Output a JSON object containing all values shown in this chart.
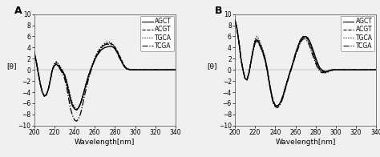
{
  "panel_A_label": "A",
  "panel_B_label": "B",
  "xlabel": "Wavelength[nm]",
  "ylabel": "[θ]",
  "ylim": [
    -10,
    10
  ],
  "xlim": [
    200,
    340
  ],
  "xticks": [
    200,
    220,
    240,
    260,
    280,
    300,
    320,
    340
  ],
  "yticks": [
    -10,
    -8,
    -6,
    -4,
    -2,
    0,
    2,
    4,
    6,
    8,
    10
  ],
  "legend_labels": [
    "AGCT",
    "ACGT",
    "TGCA",
    "TCGA"
  ],
  "line_styles": [
    "-",
    "--",
    ":",
    "-."
  ],
  "line_color": "#000000",
  "background_color": "#f0f0f0",
  "fontsize_label": 6.5,
  "fontsize_tick": 5.5,
  "fontsize_legend": 5.5,
  "fontsize_panel": 9,
  "wavelengths": [
    200,
    202,
    204,
    206,
    208,
    210,
    212,
    214,
    216,
    218,
    220,
    222,
    224,
    226,
    228,
    230,
    232,
    234,
    236,
    238,
    240,
    242,
    244,
    246,
    248,
    250,
    252,
    254,
    256,
    258,
    260,
    262,
    264,
    266,
    268,
    270,
    272,
    274,
    276,
    278,
    280,
    282,
    284,
    286,
    288,
    290,
    292,
    294,
    296,
    298,
    300,
    305,
    310,
    315,
    320,
    325,
    330,
    335,
    340
  ],
  "panel_A": {
    "AGCT": [
      3.2,
      1.5,
      -0.5,
      -2.5,
      -4.0,
      -4.7,
      -4.5,
      -3.5,
      -1.8,
      0.0,
      0.8,
      1.0,
      0.7,
      0.2,
      -0.3,
      -1.0,
      -2.2,
      -3.8,
      -5.5,
      -6.5,
      -7.0,
      -7.2,
      -6.8,
      -6.0,
      -4.8,
      -3.5,
      -2.2,
      -1.0,
      0.0,
      1.0,
      1.8,
      2.5,
      3.0,
      3.5,
      3.8,
      4.0,
      4.1,
      4.2,
      4.2,
      4.1,
      3.8,
      3.2,
      2.5,
      1.8,
      1.0,
      0.5,
      0.2,
      0.1,
      0.0,
      0.0,
      0.0,
      0.0,
      0.0,
      0.0,
      0.0,
      0.0,
      0.0,
      0.0,
      0.0
    ],
    "ACGT": [
      3.2,
      1.5,
      -0.5,
      -2.5,
      -4.0,
      -4.7,
      -4.5,
      -3.5,
      -1.8,
      0.1,
      1.0,
      1.3,
      0.9,
      0.4,
      -0.2,
      -0.8,
      -2.0,
      -3.5,
      -5.2,
      -6.3,
      -7.0,
      -7.2,
      -6.8,
      -6.0,
      -4.8,
      -3.5,
      -2.2,
      -1.0,
      0.0,
      1.0,
      2.0,
      2.8,
      3.4,
      3.9,
      4.3,
      4.6,
      4.7,
      4.8,
      4.7,
      4.5,
      4.1,
      3.5,
      2.8,
      2.0,
      1.2,
      0.6,
      0.2,
      0.1,
      0.0,
      0.0,
      0.0,
      0.0,
      0.0,
      0.0,
      0.0,
      0.0,
      0.0,
      0.0,
      0.0
    ],
    "TGCA": [
      3.2,
      1.5,
      -0.5,
      -2.5,
      -4.0,
      -4.7,
      -4.5,
      -3.5,
      -1.8,
      0.1,
      1.1,
      1.5,
      1.1,
      0.5,
      -0.1,
      -0.7,
      -1.8,
      -3.2,
      -4.8,
      -6.0,
      -6.7,
      -7.0,
      -6.7,
      -5.8,
      -4.6,
      -3.3,
      -2.0,
      -0.8,
      0.2,
      1.2,
      2.2,
      3.0,
      3.6,
      4.1,
      4.5,
      4.8,
      5.0,
      5.0,
      4.9,
      4.6,
      4.1,
      3.4,
      2.6,
      1.8,
      1.0,
      0.5,
      0.2,
      0.1,
      0.0,
      0.0,
      0.0,
      0.0,
      0.0,
      0.0,
      0.0,
      0.0,
      0.0,
      0.0,
      0.0
    ],
    "TCGA": [
      3.2,
      1.5,
      -0.5,
      -2.5,
      -4.0,
      -4.7,
      -4.5,
      -3.5,
      -1.8,
      0.0,
      0.8,
      1.0,
      0.6,
      0.0,
      -0.6,
      -1.5,
      -3.0,
      -5.0,
      -7.0,
      -8.2,
      -9.0,
      -9.2,
      -8.8,
      -7.8,
      -6.2,
      -4.5,
      -3.0,
      -1.5,
      -0.3,
      0.8,
      1.8,
      2.6,
      3.2,
      3.8,
      4.2,
      4.5,
      4.6,
      4.6,
      4.5,
      4.2,
      3.8,
      3.1,
      2.3,
      1.6,
      0.9,
      0.4,
      0.1,
      0.0,
      0.0,
      0.0,
      0.0,
      0.0,
      0.0,
      0.0,
      0.0,
      0.0,
      0.0,
      0.0,
      0.0
    ]
  },
  "panel_B": {
    "AGCT": [
      9.0,
      7.5,
      5.0,
      2.0,
      0.0,
      -1.5,
      -1.8,
      -0.5,
      1.5,
      3.5,
      5.0,
      5.3,
      4.8,
      4.0,
      3.0,
      1.8,
      0.0,
      -2.2,
      -4.2,
      -5.8,
      -6.4,
      -6.5,
      -6.2,
      -5.5,
      -4.5,
      -3.2,
      -2.0,
      -0.8,
      0.3,
      1.5,
      2.8,
      3.8,
      4.8,
      5.5,
      5.9,
      6.0,
      5.8,
      5.2,
      4.3,
      3.3,
      2.2,
      1.2,
      0.4,
      0.0,
      -0.2,
      -0.3,
      -0.2,
      -0.1,
      0.0,
      0.0,
      0.0,
      0.0,
      0.0,
      0.0,
      0.0,
      0.0,
      0.0,
      0.0,
      0.0
    ],
    "ACGT": [
      9.0,
      7.5,
      5.0,
      2.0,
      0.0,
      -1.5,
      -1.8,
      -0.5,
      1.5,
      3.5,
      5.2,
      5.6,
      5.0,
      4.2,
      3.2,
      2.0,
      0.2,
      -2.0,
      -4.0,
      -5.6,
      -6.3,
      -6.5,
      -6.2,
      -5.5,
      -4.5,
      -3.2,
      -1.9,
      -0.7,
      0.4,
      1.6,
      2.9,
      4.0,
      5.0,
      5.7,
      6.0,
      5.9,
      5.6,
      4.9,
      3.9,
      2.9,
      1.8,
      0.8,
      0.1,
      -0.2,
      -0.3,
      -0.4,
      -0.3,
      -0.1,
      0.0,
      0.0,
      0.0,
      0.0,
      0.0,
      0.0,
      0.0,
      0.0,
      0.0,
      0.0,
      0.0
    ],
    "TGCA": [
      9.0,
      7.5,
      5.0,
      2.0,
      0.0,
      -1.5,
      -1.8,
      -0.5,
      1.7,
      3.7,
      5.5,
      6.0,
      5.4,
      4.5,
      3.5,
      2.2,
      0.3,
      -2.0,
      -4.0,
      -5.6,
      -6.3,
      -6.5,
      -6.2,
      -5.4,
      -4.4,
      -3.1,
      -1.8,
      -0.6,
      0.5,
      1.7,
      3.0,
      4.1,
      5.1,
      5.8,
      6.0,
      5.8,
      5.4,
      4.6,
      3.6,
      2.5,
      1.5,
      0.6,
      0.0,
      -0.3,
      -0.4,
      -0.5,
      -0.4,
      -0.2,
      -0.1,
      0.0,
      0.0,
      0.0,
      0.0,
      0.0,
      0.0,
      0.0,
      0.0,
      0.0,
      0.0
    ],
    "TCGA": [
      9.0,
      7.5,
      5.0,
      2.0,
      0.0,
      -1.5,
      -1.8,
      -0.5,
      1.5,
      3.3,
      4.8,
      5.2,
      4.6,
      3.8,
      2.8,
      1.6,
      -0.2,
      -2.4,
      -4.4,
      -6.0,
      -6.6,
      -6.8,
      -6.5,
      -5.8,
      -4.8,
      -3.5,
      -2.2,
      -1.0,
      0.2,
      1.3,
      2.5,
      3.5,
      4.5,
      5.2,
      5.6,
      5.5,
      5.1,
      4.3,
      3.2,
      2.2,
      1.2,
      0.3,
      -0.2,
      -0.5,
      -0.5,
      -0.5,
      -0.4,
      -0.2,
      -0.1,
      0.0,
      0.0,
      0.0,
      0.0,
      0.0,
      0.0,
      0.0,
      0.0,
      0.0,
      0.0
    ]
  }
}
